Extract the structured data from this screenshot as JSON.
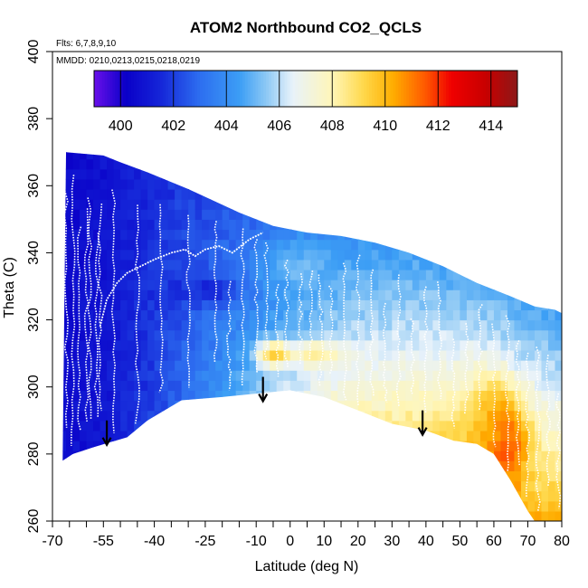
{
  "chart_data": {
    "type": "heatmap",
    "title": "ATOM2 Northbound CO2_QCLS",
    "annotations": {
      "flights": "Flts: 6,7,8,9,10",
      "dates": "MMDD: 0210,0213,0215,0218,0219"
    },
    "xlabel": "Latitude (deg N)",
    "ylabel": "Theta (C)",
    "xlim": [
      -70,
      80
    ],
    "ylim": [
      260,
      400
    ],
    "x_ticks": [
      -70,
      -55,
      -40,
      -25,
      -10,
      0,
      10,
      20,
      30,
      40,
      50,
      60,
      70,
      80
    ],
    "x_minor_ticks": [
      -65,
      -60,
      -50,
      -45,
      -35,
      -30,
      -20,
      -15,
      -5,
      5,
      15,
      25,
      35,
      45,
      55,
      65,
      75
    ],
    "y_ticks": [
      260,
      280,
      300,
      320,
      340,
      360,
      380,
      400
    ],
    "colorbar": {
      "min": 399,
      "max": 415,
      "tick_values": [
        400,
        402,
        404,
        406,
        408,
        410,
        412,
        414
      ],
      "tick_labels": [
        "400",
        "402",
        "404",
        "406",
        "408",
        "410",
        "412",
        "414"
      ],
      "stops": [
        {
          "v": 399,
          "color": "#6a10ea"
        },
        {
          "v": 400.2,
          "color": "#0a00c8"
        },
        {
          "v": 401.5,
          "color": "#1525d8"
        },
        {
          "v": 403,
          "color": "#2d6ef0"
        },
        {
          "v": 404.5,
          "color": "#3c9ef5"
        },
        {
          "v": 405.5,
          "color": "#8cc8f5"
        },
        {
          "v": 406.5,
          "color": "#e8f2fa"
        },
        {
          "v": 408,
          "color": "#fff6b8"
        },
        {
          "v": 409.2,
          "color": "#ffd84a"
        },
        {
          "v": 410.3,
          "color": "#ffad00"
        },
        {
          "v": 411.5,
          "color": "#ff5a00"
        },
        {
          "v": 412.5,
          "color": "#f00000"
        },
        {
          "v": 413.8,
          "color": "#c80000"
        },
        {
          "v": 415,
          "color": "#8c1818"
        }
      ]
    },
    "field": {
      "lat_step": 2,
      "theta_step": 3,
      "top_envelope": [
        [
          -66,
          370
        ],
        [
          -55,
          369
        ],
        [
          -50,
          367
        ],
        [
          -42,
          364
        ],
        [
          -30,
          359
        ],
        [
          -15,
          352
        ],
        [
          -5,
          348
        ],
        [
          5,
          346
        ],
        [
          15,
          345
        ],
        [
          25,
          343
        ],
        [
          35,
          340
        ],
        [
          45,
          336
        ],
        [
          55,
          331
        ],
        [
          65,
          327
        ],
        [
          72,
          324
        ],
        [
          78,
          323
        ],
        [
          80,
          322
        ]
      ],
      "bottom_envelope": [
        [
          -67,
          278
        ],
        [
          -64,
          280
        ],
        [
          -58,
          282
        ],
        [
          -48,
          285
        ],
        [
          -42,
          290
        ],
        [
          -32,
          296
        ],
        [
          -20,
          297
        ],
        [
          -10,
          298
        ],
        [
          0,
          299
        ],
        [
          10,
          297
        ],
        [
          20,
          293
        ],
        [
          30,
          289
        ],
        [
          40,
          287
        ],
        [
          48,
          284
        ],
        [
          55,
          283
        ],
        [
          60,
          280
        ],
        [
          65,
          272
        ],
        [
          70,
          263
        ],
        [
          72,
          260
        ],
        [
          80,
          260
        ]
      ],
      "background_gradient": [
        {
          "lat": -70,
          "bottom": 400.6,
          "top": 400.4
        },
        {
          "lat": -55,
          "bottom": 401.0,
          "top": 400.8
        },
        {
          "lat": -35,
          "bottom": 402.6,
          "top": 401.8
        },
        {
          "lat": -15,
          "bottom": 405.0,
          "top": 402.6
        },
        {
          "lat": 0,
          "bottom": 406.3,
          "top": 403.4
        },
        {
          "lat": 20,
          "bottom": 408.0,
          "top": 404.2
        },
        {
          "lat": 40,
          "bottom": 409.0,
          "top": 404.6
        },
        {
          "lat": 60,
          "bottom": 410.2,
          "top": 404.8
        },
        {
          "lat": 80,
          "bottom": 410.5,
          "top": 404.6
        }
      ],
      "features": [
        {
          "lat": -22,
          "theta": 329,
          "dlat": 10,
          "dtheta": 5,
          "delta": -1.5
        },
        {
          "lat": -5,
          "theta": 310,
          "dlat": 5,
          "dtheta": 4,
          "delta": 4.5
        },
        {
          "lat": 8,
          "theta": 310,
          "dlat": 8,
          "dtheta": 4,
          "delta": 2.5
        },
        {
          "lat": 62,
          "theta": 295,
          "dlat": 8,
          "dtheta": 9,
          "delta": 2.0
        },
        {
          "lat": 66,
          "theta": 283,
          "dlat": 6,
          "dtheta": 9,
          "delta": 2.5
        },
        {
          "lat": 0,
          "theta": 338,
          "dlat": 12,
          "dtheta": 8,
          "delta": 1.2
        }
      ]
    },
    "profiles": [
      -66,
      -64,
      -62,
      -60,
      -59,
      -57,
      -56,
      -52,
      -45,
      -38,
      -30,
      -22,
      -18,
      -14,
      -10,
      -7,
      -4,
      -1,
      3,
      6,
      9,
      12,
      16,
      20,
      24,
      28,
      32,
      36,
      40,
      44,
      48,
      52,
      56,
      60,
      64,
      67,
      70,
      73,
      76,
      79
    ],
    "upper_trace": [
      [
        -56,
        318
      ],
      [
        -54,
        326
      ],
      [
        -51,
        331
      ],
      [
        -48,
        334
      ],
      [
        -44,
        336
      ],
      [
        -40,
        338
      ],
      [
        -35,
        340
      ],
      [
        -31,
        341
      ],
      [
        -28,
        339
      ],
      [
        -25,
        341
      ],
      [
        -21,
        342
      ],
      [
        -17,
        340
      ],
      [
        -12,
        344
      ],
      [
        -8,
        346
      ]
    ],
    "arrows": [
      {
        "lat": -54,
        "theta_top": 290,
        "theta_tip": 283
      },
      {
        "lat": -8,
        "theta_top": 303,
        "theta_tip": 296
      },
      {
        "lat": 39,
        "theta_top": 293,
        "theta_tip": 286
      }
    ]
  }
}
